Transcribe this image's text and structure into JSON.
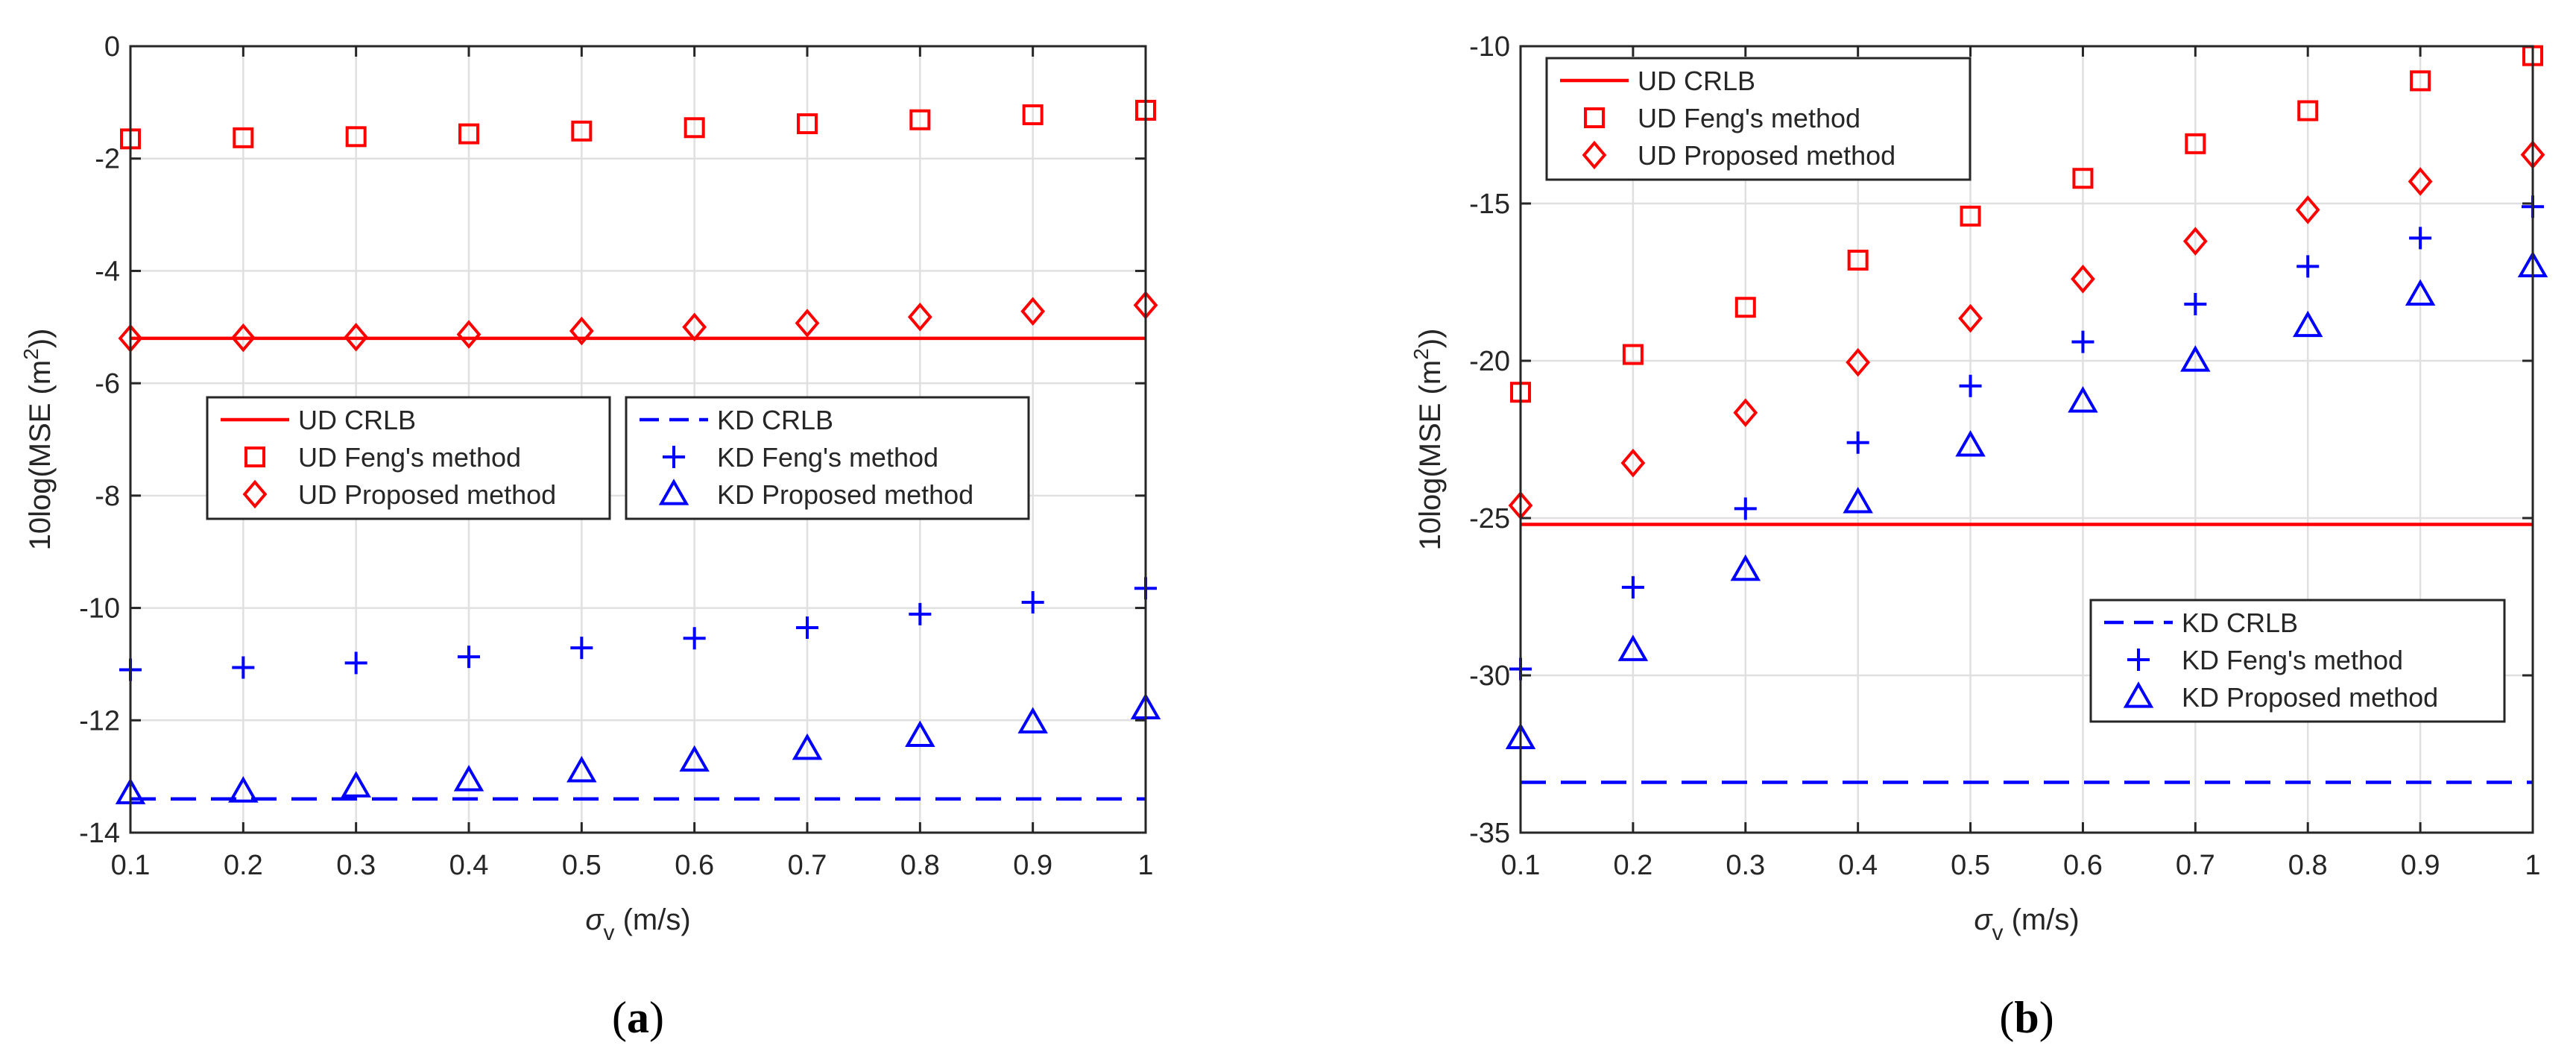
{
  "colors": {
    "ud": "#ff0000",
    "kd": "#0000ff",
    "grid": "#e0e0e0",
    "axis": "#262626",
    "text": "#262626"
  },
  "chart_data": [
    {
      "type": "scatter",
      "panel_label": "(a)",
      "panel_letter": "a",
      "xlabel_symbol": "σ",
      "xlabel_sub": "v",
      "xlabel_units": " (m/s)",
      "ylabel_main": "10log(MSE (m",
      "ylabel_sup": "2",
      "ylabel_tail": "))",
      "xlim": [
        0.1,
        1
      ],
      "ylim": [
        -14,
        0
      ],
      "xticks": [
        0.1,
        0.2,
        0.3,
        0.4,
        0.5,
        0.6,
        0.7,
        0.8,
        0.9,
        1
      ],
      "xtick_labels": [
        "0.1",
        "0.2",
        "0.3",
        "0.4",
        "0.5",
        "0.6",
        "0.7",
        "0.8",
        "0.9",
        "1"
      ],
      "yticks": [
        -14,
        -12,
        -10,
        -8,
        -6,
        -4,
        -2,
        0
      ],
      "ytick_labels": [
        "-14",
        "-12",
        "-10",
        "-8",
        "-6",
        "-4",
        "-2",
        "0"
      ],
      "grid": true,
      "x": [
        0.1,
        0.2,
        0.3,
        0.4,
        0.5,
        0.6,
        0.7,
        0.8,
        0.9,
        1.0
      ],
      "series": [
        {
          "name": "UD CRLB",
          "group": "ud",
          "kind": "line",
          "dashed": false,
          "values": [
            -5.2,
            -5.2,
            -5.2,
            -5.2,
            -5.2,
            -5.2,
            -5.2,
            -5.2,
            -5.2,
            -5.2
          ]
        },
        {
          "name": "UD Feng's method",
          "group": "ud",
          "kind": "square",
          "values": [
            -1.65,
            -1.63,
            -1.61,
            -1.56,
            -1.51,
            -1.45,
            -1.38,
            -1.31,
            -1.22,
            -1.14
          ]
        },
        {
          "name": "UD Proposed method",
          "group": "ud",
          "kind": "diamond",
          "values": [
            -5.2,
            -5.19,
            -5.18,
            -5.13,
            -5.07,
            -5.0,
            -4.93,
            -4.82,
            -4.72,
            -4.61
          ]
        },
        {
          "name": "KD CRLB",
          "group": "kd",
          "kind": "line",
          "dashed": true,
          "values": [
            -13.4,
            -13.4,
            -13.4,
            -13.4,
            -13.4,
            -13.4,
            -13.4,
            -13.4,
            -13.4,
            -13.4
          ]
        },
        {
          "name": "KD Feng's method",
          "group": "kd",
          "kind": "plus",
          "values": [
            -11.1,
            -11.06,
            -10.98,
            -10.87,
            -10.71,
            -10.54,
            -10.35,
            -10.11,
            -9.9,
            -9.65
          ]
        },
        {
          "name": "KD Proposed method",
          "group": "kd",
          "kind": "triangle",
          "values": [
            -13.3,
            -13.27,
            -13.18,
            -13.07,
            -12.91,
            -12.72,
            -12.51,
            -12.28,
            -12.04,
            -11.79
          ]
        }
      ],
      "legends": [
        {
          "position": "center-left",
          "entries": [
            "UD CRLB",
            "UD Feng's method",
            "UD Proposed method"
          ]
        },
        {
          "position": "center-right",
          "entries": [
            "KD CRLB",
            "KD Feng's method",
            "KD Proposed method"
          ]
        }
      ]
    },
    {
      "type": "scatter",
      "panel_label": "(b)",
      "panel_letter": "b",
      "xlabel_symbol": "σ",
      "xlabel_sub": "v",
      "xlabel_units": " (m/s)",
      "ylabel_main": "10log(MSE (m",
      "ylabel_sup": "2",
      "ylabel_tail": "))",
      "xlim": [
        0.1,
        1
      ],
      "ylim": [
        -35,
        -10
      ],
      "xticks": [
        0.1,
        0.2,
        0.3,
        0.4,
        0.5,
        0.6,
        0.7,
        0.8,
        0.9,
        1
      ],
      "xtick_labels": [
        "0.1",
        "0.2",
        "0.3",
        "0.4",
        "0.5",
        "0.6",
        "0.7",
        "0.8",
        "0.9",
        "1"
      ],
      "yticks": [
        -35,
        -30,
        -25,
        -20,
        -15,
        -10
      ],
      "ytick_labels": [
        "-35",
        "-30",
        "-25",
        "-20",
        "-15",
        "-10"
      ],
      "grid": true,
      "x": [
        0.1,
        0.2,
        0.3,
        0.4,
        0.5,
        0.6,
        0.7,
        0.8,
        0.9,
        1.0
      ],
      "series": [
        {
          "name": "UD CRLB",
          "group": "ud",
          "kind": "line",
          "dashed": false,
          "values": [
            -25.2,
            -25.2,
            -25.2,
            -25.2,
            -25.2,
            -25.2,
            -25.2,
            -25.2,
            -25.2,
            -25.2
          ]
        },
        {
          "name": "UD Feng's method",
          "group": "ud",
          "kind": "square",
          "values": [
            -21.0,
            -19.8,
            -18.3,
            -16.8,
            -15.4,
            -14.2,
            -13.1,
            -12.05,
            -11.1,
            -10.3
          ]
        },
        {
          "name": "UD Proposed method",
          "group": "ud",
          "kind": "diamond",
          "values": [
            -24.6,
            -23.25,
            -21.65,
            -20.05,
            -18.65,
            -17.4,
            -16.2,
            -15.2,
            -14.3,
            -13.45
          ]
        },
        {
          "name": "KD CRLB",
          "group": "kd",
          "kind": "line",
          "dashed": true,
          "values": [
            -33.4,
            -33.4,
            -33.4,
            -33.4,
            -33.4,
            -33.4,
            -33.4,
            -33.4,
            -33.4,
            -33.4
          ]
        },
        {
          "name": "KD Feng's method",
          "group": "kd",
          "kind": "plus",
          "values": [
            -29.8,
            -27.2,
            -24.7,
            -22.6,
            -20.8,
            -19.4,
            -18.2,
            -17.0,
            -16.1,
            -15.1
          ]
        },
        {
          "name": "KD Proposed method",
          "group": "kd",
          "kind": "triangle",
          "values": [
            -32.0,
            -29.2,
            -26.65,
            -24.5,
            -22.7,
            -21.3,
            -20.0,
            -18.9,
            -17.9,
            -17.0
          ]
        }
      ],
      "legends": [
        {
          "position": "top-left",
          "entries": [
            "UD CRLB",
            "UD Feng's method",
            "UD Proposed method"
          ]
        },
        {
          "position": "bottom-right",
          "entries": [
            "KD CRLB",
            "KD Feng's method",
            "KD Proposed method"
          ]
        }
      ]
    }
  ]
}
